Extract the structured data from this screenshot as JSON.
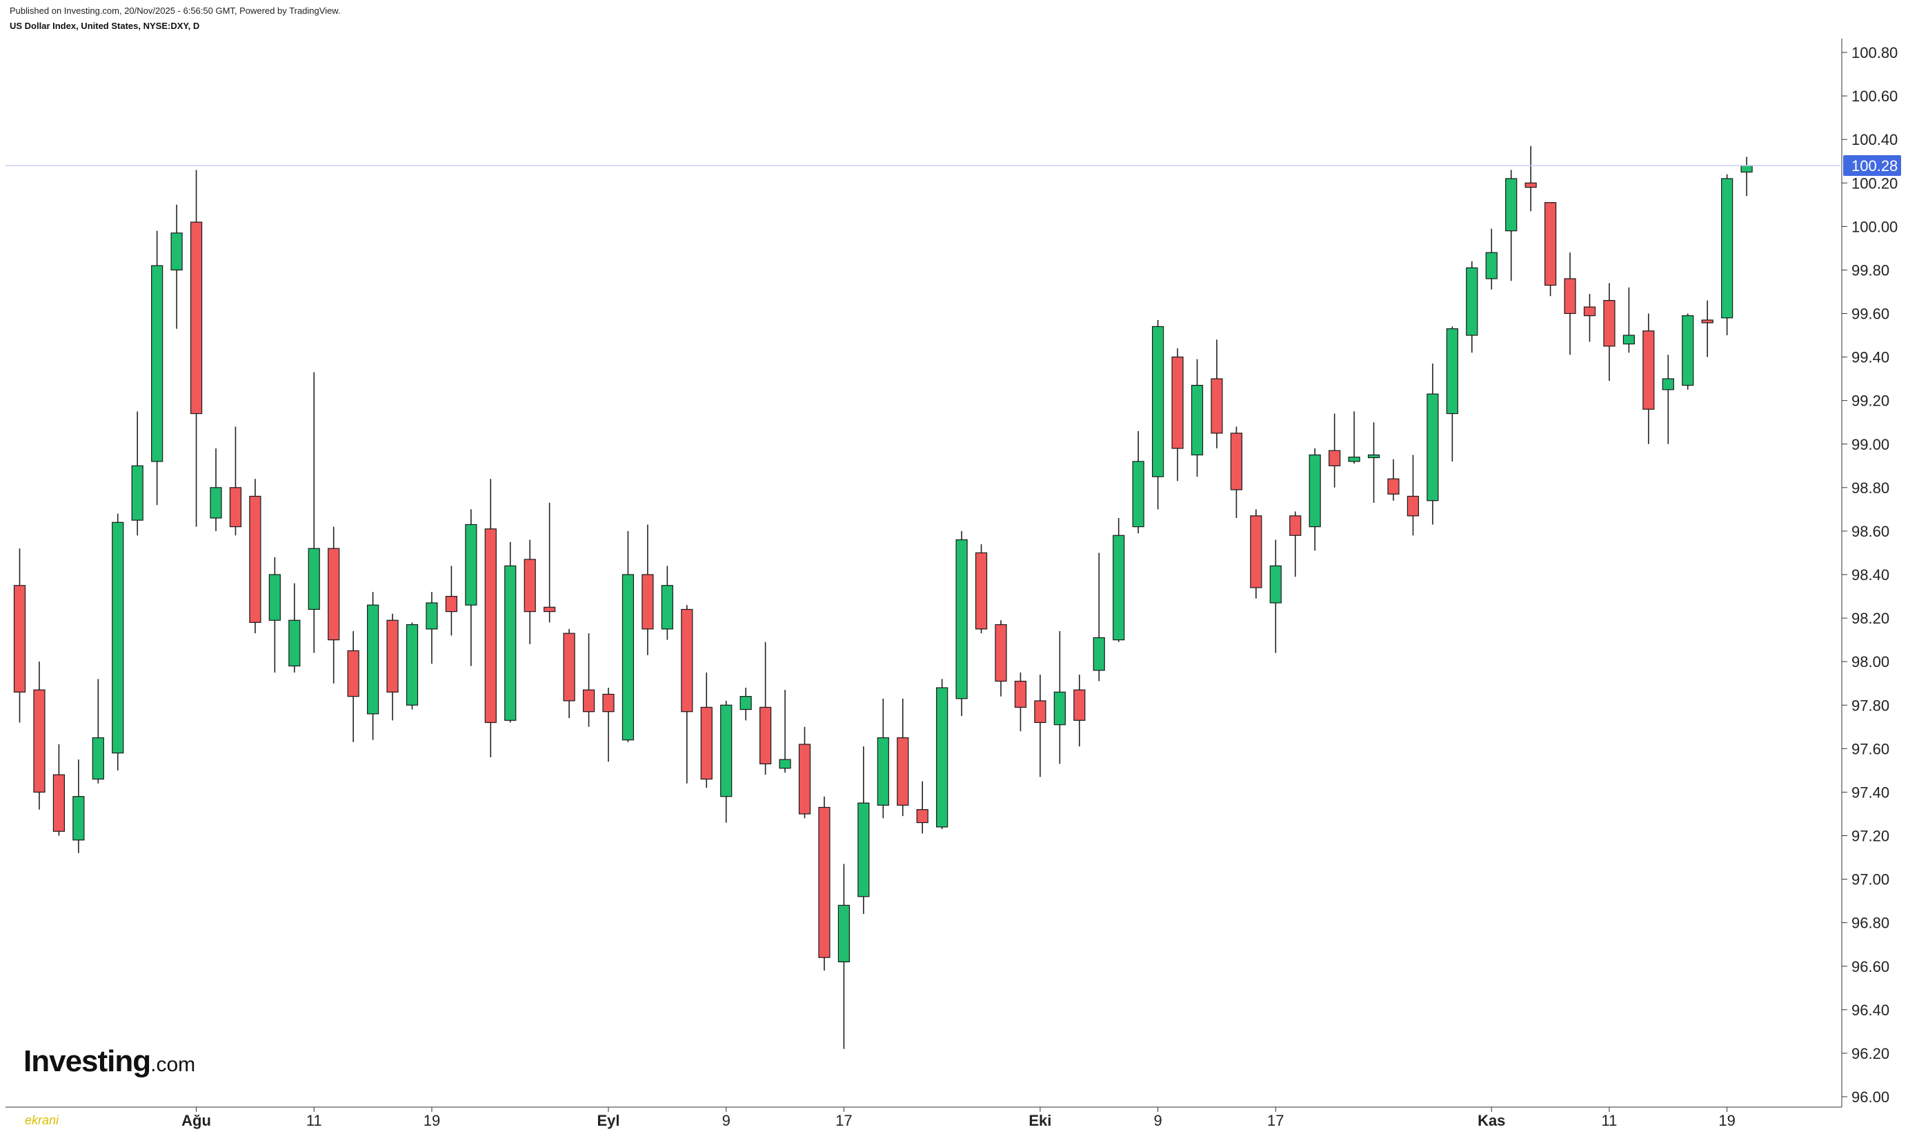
{
  "header": {
    "published": "Published on Investing.com, 20/Nov/2025 - 6:56:50 GMT, Powered by TradingView.",
    "instrument": "US Dollar Index, United States, NYSE:DXY, D"
  },
  "logo": {
    "brand": "Investing",
    "suffix": ".com"
  },
  "watermark": {
    "text": "ekrani"
  },
  "colors": {
    "up": "#1fbe6e",
    "down": "#f0585a",
    "wick": "#222222",
    "priceLine": "#c7cff0",
    "priceTag": "#4169e1"
  },
  "chart_data": {
    "type": "candlestick",
    "title": "",
    "ylim": [
      96.0,
      100.9
    ],
    "y_ticks": [
      "100.80",
      "100.60",
      "100.40",
      "100.20",
      "100.00",
      "99.80",
      "99.60",
      "99.40",
      "99.20",
      "99.00",
      "98.80",
      "98.60",
      "98.40",
      "98.20",
      "98.00",
      "97.80",
      "97.60",
      "97.40",
      "97.20",
      "97.00",
      "96.80",
      "96.60",
      "96.40",
      "96.20",
      "96.00"
    ],
    "x_labels": [
      {
        "index": 9,
        "text": "Ağu",
        "bold": true
      },
      {
        "index": 15,
        "text": "11",
        "bold": false
      },
      {
        "index": 21,
        "text": "19",
        "bold": false
      },
      {
        "index": 30,
        "text": "Eyl",
        "bold": true
      },
      {
        "index": 36,
        "text": "9",
        "bold": false
      },
      {
        "index": 42,
        "text": "17",
        "bold": false
      },
      {
        "index": 52,
        "text": "Eki",
        "bold": true
      },
      {
        "index": 58,
        "text": "9",
        "bold": false
      },
      {
        "index": 64,
        "text": "17",
        "bold": false
      },
      {
        "index": 75,
        "text": "Kas",
        "bold": true
      },
      {
        "index": 81,
        "text": "11",
        "bold": false
      },
      {
        "index": 87,
        "text": "19",
        "bold": false
      }
    ],
    "last_price": "100.28",
    "last_value": 100.28,
    "candles": [
      {
        "o": 98.35,
        "h": 98.52,
        "l": 97.72,
        "c": 97.86
      },
      {
        "o": 97.87,
        "h": 98.0,
        "l": 97.32,
        "c": 97.4
      },
      {
        "o": 97.48,
        "h": 97.62,
        "l": 97.2,
        "c": 97.22
      },
      {
        "o": 97.18,
        "h": 97.55,
        "l": 97.12,
        "c": 97.38
      },
      {
        "o": 97.46,
        "h": 97.92,
        "l": 97.44,
        "c": 97.65
      },
      {
        "o": 97.58,
        "h": 98.68,
        "l": 97.5,
        "c": 98.64
      },
      {
        "o": 98.65,
        "h": 99.15,
        "l": 98.58,
        "c": 98.9
      },
      {
        "o": 98.92,
        "h": 99.98,
        "l": 98.72,
        "c": 99.82
      },
      {
        "o": 99.8,
        "h": 100.1,
        "l": 99.53,
        "c": 99.97
      },
      {
        "o": 100.02,
        "h": 100.26,
        "l": 98.62,
        "c": 99.14
      },
      {
        "o": 98.66,
        "h": 98.98,
        "l": 98.6,
        "c": 98.8
      },
      {
        "o": 98.8,
        "h": 99.08,
        "l": 98.58,
        "c": 98.62
      },
      {
        "o": 98.76,
        "h": 98.84,
        "l": 98.13,
        "c": 98.18
      },
      {
        "o": 98.19,
        "h": 98.48,
        "l": 97.95,
        "c": 98.4
      },
      {
        "o": 97.98,
        "h": 98.36,
        "l": 97.95,
        "c": 98.19
      },
      {
        "o": 98.24,
        "h": 99.33,
        "l": 98.04,
        "c": 98.52
      },
      {
        "o": 98.52,
        "h": 98.62,
        "l": 97.9,
        "c": 98.1
      },
      {
        "o": 98.05,
        "h": 98.14,
        "l": 97.63,
        "c": 97.84
      },
      {
        "o": 97.76,
        "h": 98.32,
        "l": 97.64,
        "c": 98.26
      },
      {
        "o": 98.19,
        "h": 98.22,
        "l": 97.73,
        "c": 97.86
      },
      {
        "o": 97.8,
        "h": 98.18,
        "l": 97.78,
        "c": 98.17
      },
      {
        "o": 98.15,
        "h": 98.32,
        "l": 97.99,
        "c": 98.27
      },
      {
        "o": 98.3,
        "h": 98.44,
        "l": 98.12,
        "c": 98.23
      },
      {
        "o": 98.26,
        "h": 98.7,
        "l": 97.98,
        "c": 98.63
      },
      {
        "o": 98.61,
        "h": 98.84,
        "l": 97.56,
        "c": 97.72
      },
      {
        "o": 97.73,
        "h": 98.55,
        "l": 97.72,
        "c": 98.44
      },
      {
        "o": 98.47,
        "h": 98.56,
        "l": 98.08,
        "c": 98.23
      },
      {
        "o": 98.25,
        "h": 98.73,
        "l": 98.18,
        "c": 98.23
      },
      {
        "o": 98.13,
        "h": 98.15,
        "l": 97.74,
        "c": 97.82
      },
      {
        "o": 97.87,
        "h": 98.13,
        "l": 97.7,
        "c": 97.77
      },
      {
        "o": 97.85,
        "h": 97.88,
        "l": 97.54,
        "c": 97.77
      },
      {
        "o": 97.64,
        "h": 98.6,
        "l": 97.63,
        "c": 98.4
      },
      {
        "o": 98.4,
        "h": 98.63,
        "l": 98.03,
        "c": 98.15
      },
      {
        "o": 98.15,
        "h": 98.44,
        "l": 98.1,
        "c": 98.35
      },
      {
        "o": 98.24,
        "h": 98.26,
        "l": 97.44,
        "c": 97.77
      },
      {
        "o": 97.79,
        "h": 97.95,
        "l": 97.42,
        "c": 97.46
      },
      {
        "o": 97.38,
        "h": 97.82,
        "l": 97.26,
        "c": 97.8
      },
      {
        "o": 97.78,
        "h": 97.88,
        "l": 97.73,
        "c": 97.84
      },
      {
        "o": 97.79,
        "h": 98.09,
        "l": 97.48,
        "c": 97.53
      },
      {
        "o": 97.51,
        "h": 97.87,
        "l": 97.49,
        "c": 97.55
      },
      {
        "o": 97.62,
        "h": 97.7,
        "l": 97.28,
        "c": 97.3
      },
      {
        "o": 97.33,
        "h": 97.38,
        "l": 96.58,
        "c": 96.64
      },
      {
        "o": 96.62,
        "h": 97.07,
        "l": 96.22,
        "c": 96.88
      },
      {
        "o": 96.92,
        "h": 97.61,
        "l": 96.84,
        "c": 97.35
      },
      {
        "o": 97.34,
        "h": 97.83,
        "l": 97.28,
        "c": 97.65
      },
      {
        "o": 97.65,
        "h": 97.83,
        "l": 97.29,
        "c": 97.34
      },
      {
        "o": 97.32,
        "h": 97.45,
        "l": 97.21,
        "c": 97.26
      },
      {
        "o": 97.24,
        "h": 97.92,
        "l": 97.23,
        "c": 97.88
      },
      {
        "o": 97.83,
        "h": 98.6,
        "l": 97.75,
        "c": 98.56
      },
      {
        "o": 98.5,
        "h": 98.54,
        "l": 98.13,
        "c": 98.15
      },
      {
        "o": 98.17,
        "h": 98.19,
        "l": 97.84,
        "c": 97.91
      },
      {
        "o": 97.91,
        "h": 97.95,
        "l": 97.68,
        "c": 97.79
      },
      {
        "o": 97.82,
        "h": 97.94,
        "l": 97.47,
        "c": 97.72
      },
      {
        "o": 97.71,
        "h": 98.14,
        "l": 97.53,
        "c": 97.86
      },
      {
        "o": 97.87,
        "h": 97.94,
        "l": 97.61,
        "c": 97.73
      },
      {
        "o": 97.96,
        "h": 98.5,
        "l": 97.91,
        "c": 98.11
      },
      {
        "o": 98.1,
        "h": 98.66,
        "l": 98.09,
        "c": 98.58
      },
      {
        "o": 98.62,
        "h": 99.06,
        "l": 98.59,
        "c": 98.92
      },
      {
        "o": 98.85,
        "h": 99.57,
        "l": 98.7,
        "c": 99.54
      },
      {
        "o": 99.4,
        "h": 99.44,
        "l": 98.83,
        "c": 98.98
      },
      {
        "o": 98.95,
        "h": 99.39,
        "l": 98.85,
        "c": 99.27
      },
      {
        "o": 99.3,
        "h": 99.48,
        "l": 98.98,
        "c": 99.05
      },
      {
        "o": 99.05,
        "h": 99.08,
        "l": 98.66,
        "c": 98.79
      },
      {
        "o": 98.67,
        "h": 98.7,
        "l": 98.29,
        "c": 98.34
      },
      {
        "o": 98.27,
        "h": 98.56,
        "l": 98.04,
        "c": 98.44
      },
      {
        "o": 98.67,
        "h": 98.69,
        "l": 98.39,
        "c": 98.58
      },
      {
        "o": 98.62,
        "h": 98.98,
        "l": 98.51,
        "c": 98.95
      },
      {
        "o": 98.97,
        "h": 99.14,
        "l": 98.8,
        "c": 98.9
      },
      {
        "o": 98.92,
        "h": 99.15,
        "l": 98.91,
        "c": 98.94
      },
      {
        "o": 98.95,
        "h": 99.1,
        "l": 98.73,
        "c": 98.95
      },
      {
        "o": 98.84,
        "h": 98.93,
        "l": 98.74,
        "c": 98.77
      },
      {
        "o": 98.76,
        "h": 98.95,
        "l": 98.58,
        "c": 98.67
      },
      {
        "o": 98.74,
        "h": 99.37,
        "l": 98.63,
        "c": 99.23
      },
      {
        "o": 99.14,
        "h": 99.54,
        "l": 98.92,
        "c": 99.53
      },
      {
        "o": 99.5,
        "h": 99.84,
        "l": 99.42,
        "c": 99.81
      },
      {
        "o": 99.76,
        "h": 99.99,
        "l": 99.71,
        "c": 99.88
      },
      {
        "o": 99.98,
        "h": 100.26,
        "l": 99.75,
        "c": 100.22
      },
      {
        "o": 100.2,
        "h": 100.37,
        "l": 100.07,
        "c": 100.18
      },
      {
        "o": 100.11,
        "h": 100.11,
        "l": 99.68,
        "c": 99.73
      },
      {
        "o": 99.76,
        "h": 99.88,
        "l": 99.41,
        "c": 99.6
      },
      {
        "o": 99.63,
        "h": 99.69,
        "l": 99.47,
        "c": 99.59
      },
      {
        "o": 99.66,
        "h": 99.74,
        "l": 99.29,
        "c": 99.45
      },
      {
        "o": 99.46,
        "h": 99.72,
        "l": 99.42,
        "c": 99.5
      },
      {
        "o": 99.52,
        "h": 99.6,
        "l": 99.0,
        "c": 99.16
      },
      {
        "o": 99.25,
        "h": 99.41,
        "l": 99.0,
        "c": 99.3
      },
      {
        "o": 99.27,
        "h": 99.6,
        "l": 99.25,
        "c": 99.59
      },
      {
        "o": 99.57,
        "h": 99.66,
        "l": 99.4,
        "c": 99.56
      },
      {
        "o": 99.58,
        "h": 100.24,
        "l": 99.5,
        "c": 100.22
      },
      {
        "o": 100.25,
        "h": 100.32,
        "l": 100.14,
        "c": 100.28
      }
    ]
  }
}
